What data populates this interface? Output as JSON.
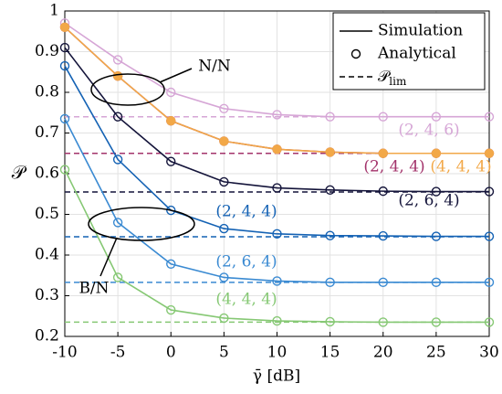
{
  "chart_data": {
    "type": "line",
    "xlabel": "γ̄ [dB]",
    "ylabel": "𝒫",
    "x": [
      -10,
      -5,
      0,
      5,
      10,
      15,
      20,
      25,
      30
    ],
    "xlim": [
      -10,
      30
    ],
    "xticks": [
      -10,
      -5,
      0,
      5,
      10,
      15,
      20,
      25,
      30
    ],
    "ylim": [
      0.2,
      1
    ],
    "yticks": [
      0.2,
      0.3,
      0.4,
      0.5,
      0.6,
      0.7,
      0.8,
      0.9,
      1
    ],
    "grid": true,
    "legend_position": "upper right",
    "legend": [
      "Simulation",
      "Analytical",
      {
        "symbol": "𝒫",
        "subscript": "lim"
      }
    ],
    "annotations": [
      "N/N",
      "B/N"
    ],
    "series": [
      {
        "name": "(2, 4, 6)",
        "color": "#d6a6d6",
        "values": [
          0.97,
          0.88,
          0.8,
          0.76,
          0.745,
          0.74,
          0.74,
          0.74,
          0.74
        ],
        "limit": 0.74
      },
      {
        "name": "(2, 4, 4)",
        "color": "#a3336b",
        "values": [
          0.96,
          0.84,
          0.73,
          0.68,
          0.66,
          0.653,
          0.65,
          0.65,
          0.65
        ],
        "limit": 0.65
      },
      {
        "name": "(4, 4, 4)",
        "color": "#f2a848",
        "values": [
          0.96,
          0.84,
          0.73,
          0.68,
          0.66,
          0.653,
          0.65,
          0.65,
          0.65
        ],
        "filled": true
      },
      {
        "name": "(2, 6, 4)",
        "color": "#14143a",
        "values": [
          0.91,
          0.74,
          0.63,
          0.58,
          0.565,
          0.56,
          0.557,
          0.556,
          0.556
        ],
        "limit": 0.555
      },
      {
        "name": "(2, 4, 4)",
        "color": "#1462b4",
        "values": [
          0.865,
          0.635,
          0.51,
          0.465,
          0.452,
          0.448,
          0.447,
          0.446,
          0.446
        ],
        "limit": 0.445
      },
      {
        "name": "(2, 6, 4)",
        "color": "#3a8ad2",
        "values": [
          0.735,
          0.48,
          0.378,
          0.345,
          0.336,
          0.333,
          0.333,
          0.333,
          0.333
        ],
        "limit": 0.333
      },
      {
        "name": "(4, 4, 4)",
        "color": "#86c874",
        "values": [
          0.61,
          0.345,
          0.265,
          0.245,
          0.238,
          0.236,
          0.235,
          0.235,
          0.235
        ],
        "limit": 0.235
      }
    ]
  }
}
